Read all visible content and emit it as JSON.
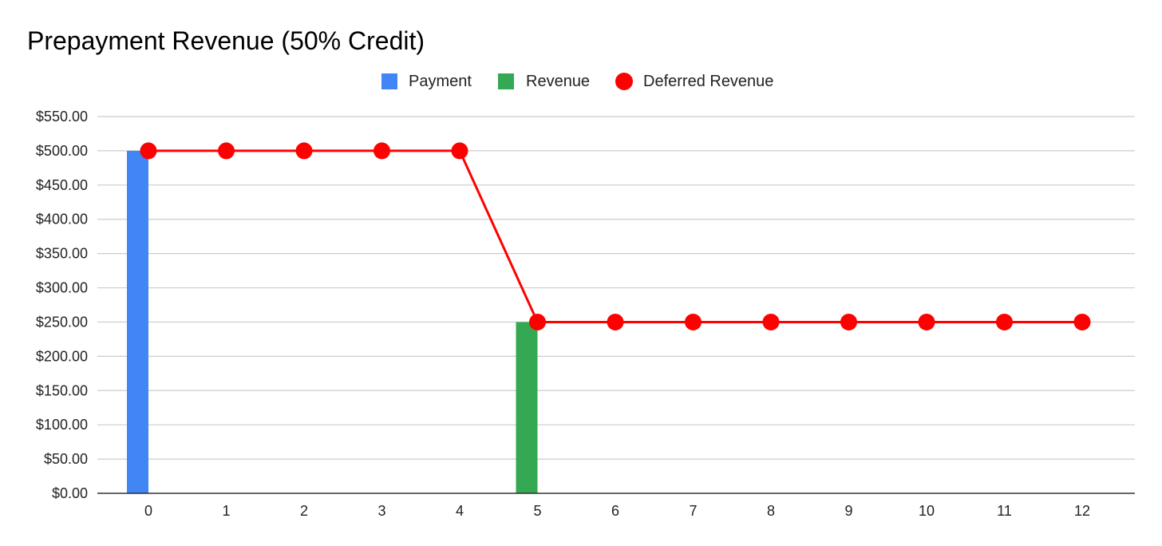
{
  "chart_data": {
    "type": "bar",
    "title": "Prepayment Revenue (50% Credit)",
    "xlabel": "",
    "ylabel": "",
    "categories": [
      "0",
      "1",
      "2",
      "3",
      "4",
      "5",
      "6",
      "7",
      "8",
      "9",
      "10",
      "11",
      "12"
    ],
    "ylim": [
      0,
      550
    ],
    "yticks": [
      "$0.00",
      "$50.00",
      "$100.00",
      "$150.00",
      "$200.00",
      "$250.00",
      "$300.00",
      "$350.00",
      "$400.00",
      "$450.00",
      "$500.00",
      "$550.00"
    ],
    "ytick_values": [
      0,
      50,
      100,
      150,
      200,
      250,
      300,
      350,
      400,
      450,
      500,
      550
    ],
    "grid": true,
    "legend_position": "top",
    "series": [
      {
        "name": "Payment",
        "kind": "bar",
        "color": "#4285f4",
        "values": [
          500,
          0,
          0,
          0,
          0,
          0,
          0,
          0,
          0,
          0,
          0,
          0,
          0
        ]
      },
      {
        "name": "Revenue",
        "kind": "bar",
        "color": "#34a853",
        "values": [
          0,
          0,
          0,
          0,
          0,
          250,
          0,
          0,
          0,
          0,
          0,
          0,
          0
        ]
      },
      {
        "name": "Deferred Revenue",
        "kind": "line",
        "color": "#ff0000",
        "values": [
          500,
          500,
          500,
          500,
          500,
          250,
          250,
          250,
          250,
          250,
          250,
          250,
          250
        ]
      }
    ]
  }
}
